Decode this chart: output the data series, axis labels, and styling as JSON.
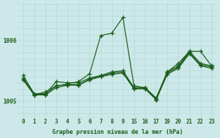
{
  "bg_color": "#cce8e8",
  "grid_color": "#b8d8d8",
  "line_color": "#1a5c1a",
  "title": "Graphe pression niveau de la mer (hPa)",
  "series": [
    {
      "x_idx": [
        0,
        1,
        2,
        3,
        4,
        5,
        6,
        7,
        8,
        9,
        10,
        11,
        12,
        13,
        14,
        15,
        16,
        17
      ],
      "y": [
        1005.35,
        1005.1,
        1005.15,
        1005.25,
        1005.28,
        1005.32,
        1005.45,
        1006.08,
        1006.12,
        1006.38,
        1005.25,
        1005.22,
        1005.02,
        1005.48,
        1005.62,
        1005.82,
        1005.82,
        1005.58
      ]
    },
    {
      "x_idx": [
        0,
        1,
        2,
        3,
        4,
        5,
        6,
        7,
        8,
        9,
        10,
        11,
        12,
        13,
        14,
        15,
        16,
        17
      ],
      "y": [
        1005.42,
        1005.12,
        1005.12,
        1005.32,
        1005.3,
        1005.3,
        1005.38,
        1005.42,
        1005.48,
        1005.5,
        1005.22,
        1005.22,
        1005.05,
        1005.48,
        1005.58,
        1005.82,
        1005.62,
        1005.58
      ]
    },
    {
      "x_idx": [
        0,
        1,
        2,
        3,
        4,
        5,
        6,
        7,
        8,
        9,
        10,
        11,
        12,
        13,
        14,
        15,
        16,
        17
      ],
      "y": [
        1005.38,
        1005.11,
        1005.11,
        1005.25,
        1005.27,
        1005.27,
        1005.36,
        1005.41,
        1005.46,
        1005.48,
        1005.21,
        1005.21,
        1005.03,
        1005.46,
        1005.56,
        1005.8,
        1005.6,
        1005.56
      ]
    },
    {
      "x_idx": [
        0,
        1,
        2,
        3,
        4,
        5,
        6,
        7,
        8,
        9,
        10,
        11,
        12,
        13,
        14,
        15,
        16,
        17
      ],
      "y": [
        1005.36,
        1005.1,
        1005.1,
        1005.22,
        1005.26,
        1005.26,
        1005.35,
        1005.4,
        1005.44,
        1005.46,
        1005.2,
        1005.2,
        1005.02,
        1005.44,
        1005.54,
        1005.78,
        1005.58,
        1005.54
      ]
    }
  ],
  "xtick_labels": [
    "0",
    "1",
    "2",
    "3",
    "4",
    "5",
    "6",
    "7",
    "8",
    "9",
    "15",
    "16",
    "17",
    "19",
    "20",
    "21",
    "22",
    "23"
  ],
  "yticks": [
    1005,
    1006
  ],
  "ylim": [
    1004.72,
    1006.62
  ],
  "xlim": [
    -0.5,
    17.5
  ],
  "marker": "+",
  "markersize": 4.0,
  "linewidth": 0.9,
  "title_fontsize": 6.0,
  "tick_fontsize": 5.5
}
